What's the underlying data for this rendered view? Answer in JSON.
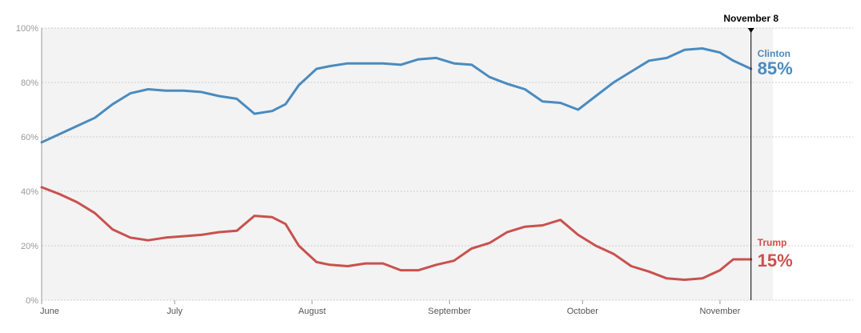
{
  "chart_data": {
    "type": "line",
    "ylim": [
      0,
      100
    ],
    "yticks": [
      0,
      20,
      40,
      60,
      80,
      100
    ],
    "ytick_labels": [
      "0%",
      "20%",
      "40%",
      "60%",
      "80%",
      "100%"
    ],
    "x_tick_labels": [
      "June",
      "July",
      "August",
      "September",
      "October",
      "November"
    ],
    "x_tick_dates": [
      "2016-06-01",
      "2016-07-01",
      "2016-08-01",
      "2016-09-01",
      "2016-10-01",
      "2016-11-01"
    ],
    "x_range": [
      "2016-06-01",
      "2016-12-01"
    ],
    "marker": {
      "label": "November 8",
      "date": "2016-11-08"
    },
    "grid": true,
    "series": [
      {
        "name": "Clinton",
        "color": "#4a8bbf",
        "end_label": "85%",
        "x": [
          "2016-06-01",
          "2016-06-05",
          "2016-06-09",
          "2016-06-13",
          "2016-06-17",
          "2016-06-21",
          "2016-06-25",
          "2016-06-29",
          "2016-07-03",
          "2016-07-07",
          "2016-07-11",
          "2016-07-15",
          "2016-07-19",
          "2016-07-23",
          "2016-07-26",
          "2016-07-29",
          "2016-08-02",
          "2016-08-05",
          "2016-08-09",
          "2016-08-13",
          "2016-08-17",
          "2016-08-21",
          "2016-08-25",
          "2016-08-29",
          "2016-09-02",
          "2016-09-06",
          "2016-09-10",
          "2016-09-14",
          "2016-09-18",
          "2016-09-22",
          "2016-09-26",
          "2016-09-30",
          "2016-10-04",
          "2016-10-08",
          "2016-10-12",
          "2016-10-16",
          "2016-10-20",
          "2016-10-24",
          "2016-10-28",
          "2016-11-01",
          "2016-11-04",
          "2016-11-08"
        ],
        "values": [
          58,
          61,
          64,
          67,
          72,
          76,
          77.5,
          77,
          77,
          76.5,
          75,
          74,
          68.5,
          69.5,
          72,
          79,
          85,
          86,
          87,
          87,
          87,
          86.5,
          88.5,
          89,
          87,
          86.5,
          82,
          79.5,
          77.5,
          73,
          72.5,
          70,
          75,
          80,
          84,
          88,
          89,
          92,
          92.5,
          91,
          88,
          85
        ]
      },
      {
        "name": "Trump",
        "color": "#c9514e",
        "end_label": "15%",
        "x": [
          "2016-06-01",
          "2016-06-05",
          "2016-06-09",
          "2016-06-13",
          "2016-06-17",
          "2016-06-21",
          "2016-06-25",
          "2016-06-29",
          "2016-07-03",
          "2016-07-07",
          "2016-07-11",
          "2016-07-15",
          "2016-07-19",
          "2016-07-23",
          "2016-07-26",
          "2016-07-29",
          "2016-08-02",
          "2016-08-05",
          "2016-08-09",
          "2016-08-13",
          "2016-08-17",
          "2016-08-21",
          "2016-08-25",
          "2016-08-29",
          "2016-09-02",
          "2016-09-06",
          "2016-09-10",
          "2016-09-14",
          "2016-09-18",
          "2016-09-22",
          "2016-09-26",
          "2016-09-30",
          "2016-10-04",
          "2016-10-08",
          "2016-10-12",
          "2016-10-16",
          "2016-10-20",
          "2016-10-24",
          "2016-10-28",
          "2016-11-01",
          "2016-11-04",
          "2016-11-08"
        ],
        "values": [
          41.5,
          39,
          36,
          32,
          26,
          23,
          22,
          23,
          23.5,
          24,
          25,
          25.5,
          31,
          30.5,
          28,
          20,
          14,
          13,
          12.5,
          13.5,
          13.5,
          11,
          11,
          13,
          14.5,
          19,
          21,
          25,
          27,
          27.5,
          29.5,
          24,
          20,
          17,
          12.5,
          10.5,
          8,
          7.5,
          8,
          11,
          15,
          15
        ]
      }
    ]
  }
}
